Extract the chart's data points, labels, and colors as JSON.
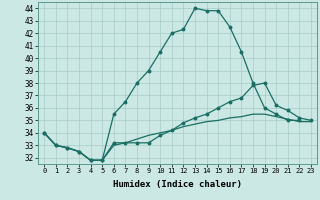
{
  "xlabel": "Humidex (Indice chaleur)",
  "bg_color": "#cce8e4",
  "grid_color": "#a8ccc8",
  "line_color": "#1a6e64",
  "xlim": [
    -0.5,
    23.5
  ],
  "ylim": [
    31.5,
    44.5
  ],
  "xticks": [
    0,
    1,
    2,
    3,
    4,
    5,
    6,
    7,
    8,
    9,
    10,
    11,
    12,
    13,
    14,
    15,
    16,
    17,
    18,
    19,
    20,
    21,
    22,
    23
  ],
  "yticks": [
    32,
    33,
    34,
    35,
    36,
    37,
    38,
    39,
    40,
    41,
    42,
    43,
    44
  ],
  "main_line": [
    34,
    33,
    32.8,
    32.5,
    31.8,
    31.8,
    35.5,
    36.5,
    38,
    39,
    40.5,
    42,
    42.3,
    44,
    43.8,
    43.8,
    42.5,
    40.5,
    38,
    36,
    35.5,
    35,
    35,
    null
  ],
  "line2": [
    34,
    33,
    32.8,
    32.5,
    31.8,
    31.8,
    33.2,
    33.2,
    33.2,
    33.2,
    33.8,
    34.2,
    34.8,
    35.2,
    35.5,
    36.0,
    36.5,
    36.8,
    37.8,
    38.0,
    36.2,
    35.8,
    35.2,
    35.0
  ],
  "line3": [
    34,
    33,
    32.8,
    32.5,
    31.8,
    31.8,
    33.0,
    33.2,
    33.5,
    33.8,
    34.0,
    34.2,
    34.5,
    34.7,
    34.9,
    35.0,
    35.2,
    35.3,
    35.5,
    35.5,
    35.3,
    35.1,
    34.9,
    34.9
  ]
}
